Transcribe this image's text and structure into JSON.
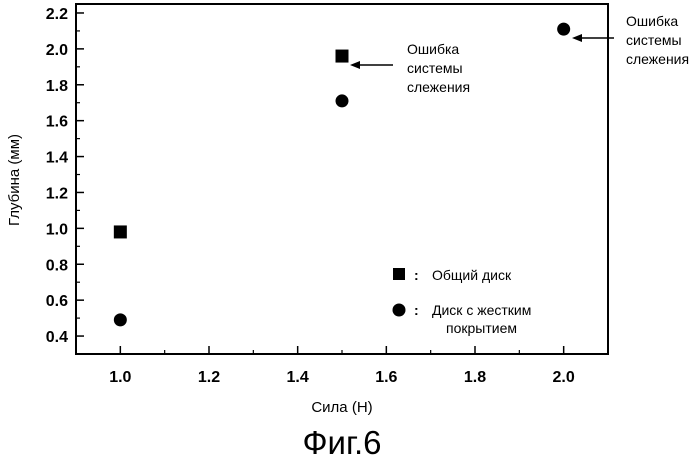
{
  "chart_data": {
    "type": "scatter",
    "title": "Фиг.6",
    "xlabel": "Сила (Н)",
    "ylabel": "Глубина (мм)",
    "xlim": [
      0.9,
      2.1
    ],
    "ylim": [
      0.3,
      2.25
    ],
    "xticks": [
      "1.0",
      "1.2",
      "1.4",
      "1.6",
      "1.8",
      "2.0"
    ],
    "yticks": [
      "0.4",
      "0.6",
      "0.8",
      "1.0",
      "1.2",
      "1.4",
      "1.6",
      "1.8",
      "2.0",
      "2.2"
    ],
    "series": [
      {
        "name": "Общий диск",
        "marker": "square",
        "x": [
          1.0,
          1.5
        ],
        "y": [
          0.98,
          1.96
        ]
      },
      {
        "name": "Диск с жестким покрытием",
        "marker": "circle",
        "x": [
          1.0,
          1.5,
          2.0
        ],
        "y": [
          0.49,
          1.71,
          2.11
        ]
      }
    ],
    "legend": {
      "placement": "lower-right",
      "separator": ":",
      "entries": [
        {
          "marker": "square",
          "label": "Общий диск"
        },
        {
          "marker": "circle",
          "label_lines": [
            "Диск с жестким",
            "покрытием"
          ]
        }
      ]
    },
    "annotations": [
      {
        "text_lines": [
          "Ошибка",
          "системы",
          "слежения"
        ],
        "x": 1.5,
        "y": 1.96
      },
      {
        "text_lines": [
          "Ошибка",
          "системы",
          "слежения"
        ],
        "x": 2.0,
        "y": 2.11
      }
    ]
  }
}
